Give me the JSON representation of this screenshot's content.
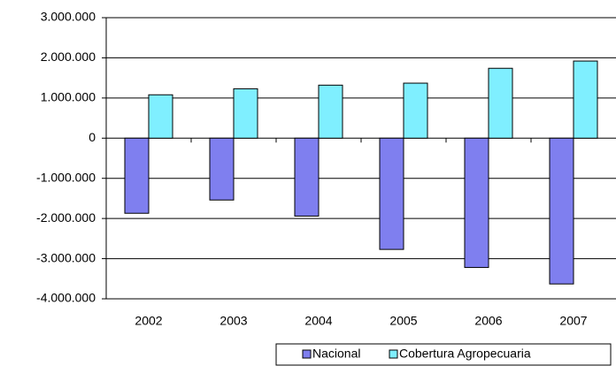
{
  "chart_data": {
    "type": "bar",
    "categories": [
      "2002",
      "2003",
      "2004",
      "2005",
      "2006",
      "2007"
    ],
    "series": [
      {
        "name": "Nacional",
        "color": "#7f7fef",
        "values": [
          -1870000,
          -1540000,
          -1940000,
          -2770000,
          -3220000,
          -3630000
        ]
      },
      {
        "name": "Cobertura Agropecuaria",
        "color": "#7fefff",
        "values": [
          1080000,
          1230000,
          1320000,
          1370000,
          1740000,
          1920000
        ]
      }
    ],
    "ylim": [
      -4000000,
      3000000
    ],
    "yticks": [
      {
        "value": -4000000,
        "label": "-4.000.000"
      },
      {
        "value": -3000000,
        "label": "-3.000.000"
      },
      {
        "value": -2000000,
        "label": "-2.000.000"
      },
      {
        "value": -1000000,
        "label": "-1.000.000"
      },
      0,
      {
        "value": 1000000,
        "label": "1.000.000"
      },
      {
        "value": 2000000,
        "label": "2.000.000"
      },
      {
        "value": 3000000,
        "label": "3.000.000"
      }
    ],
    "grid": true,
    "legend": "bottom-right"
  }
}
